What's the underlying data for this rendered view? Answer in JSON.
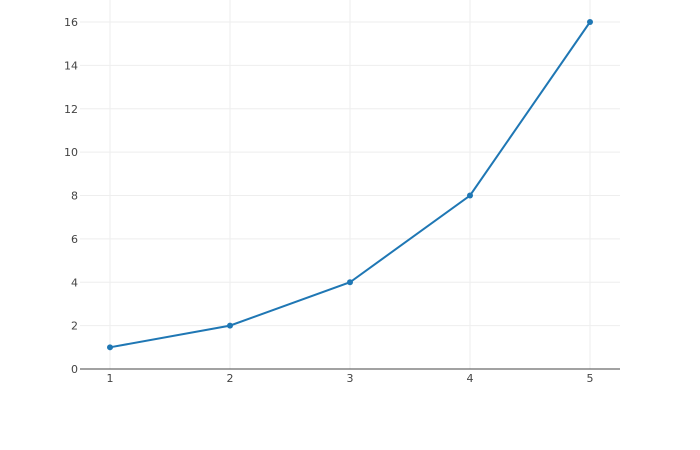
{
  "chart_data": {
    "type": "line",
    "title": "",
    "xlabel": "",
    "ylabel": "",
    "x": [
      1,
      2,
      3,
      4,
      5
    ],
    "series": [
      {
        "values": [
          1,
          2,
          4,
          8,
          16
        ],
        "color": "#1f77b4",
        "mode": "lines+markers"
      }
    ],
    "xlim": [
      0.75,
      5.25
    ],
    "ylim": [
      0,
      16.9
    ],
    "xticks": [
      "1",
      "2",
      "3",
      "4",
      "5"
    ],
    "yticks": [
      "0",
      "2",
      "4",
      "6",
      "8",
      "10",
      "12",
      "14",
      "16"
    ],
    "grid": true,
    "legend": "none"
  }
}
